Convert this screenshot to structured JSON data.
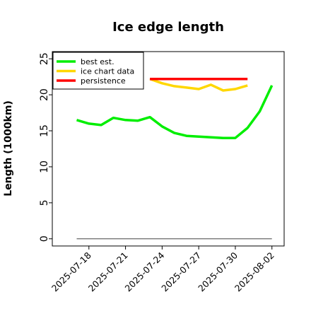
{
  "chart_data": {
    "type": "line",
    "title": "Ice edge length",
    "xlabel": "",
    "ylabel": "Length (1000km)",
    "ylim": [
      -1,
      26
    ],
    "xlim": [
      "2025-07-15",
      "2025-08-03"
    ],
    "yticks": [
      0,
      5,
      10,
      15,
      20,
      25
    ],
    "xticks": [
      "2025-07-18",
      "2025-07-21",
      "2025-07-24",
      "2025-07-27",
      "2025-07-30",
      "2025-08-02"
    ],
    "legend_position": "top-left",
    "series": [
      {
        "name": "best est.",
        "color": "#00ee00",
        "points": [
          [
            "2025-07-17",
            16.5
          ],
          [
            "2025-07-18",
            16.0
          ],
          [
            "2025-07-19",
            15.8
          ],
          [
            "2025-07-20",
            16.8
          ],
          [
            "2025-07-21",
            16.5
          ],
          [
            "2025-07-22",
            16.4
          ],
          [
            "2025-07-23",
            16.9
          ],
          [
            "2025-07-24",
            15.6
          ],
          [
            "2025-07-25",
            14.7
          ],
          [
            "2025-07-26",
            14.3
          ],
          [
            "2025-07-27",
            14.2
          ],
          [
            "2025-07-28",
            14.1
          ],
          [
            "2025-07-29",
            14.0
          ],
          [
            "2025-07-30",
            14.0
          ],
          [
            "2025-07-31",
            15.4
          ],
          [
            "2025-08-01",
            17.7
          ],
          [
            "2025-08-02",
            21.3
          ]
        ]
      },
      {
        "name": "ice chart data",
        "color": "#ffd700",
        "points": [
          [
            "2025-07-23",
            22.2
          ],
          [
            "2025-07-24",
            21.6
          ],
          [
            "2025-07-25",
            21.2
          ],
          [
            "2025-07-26",
            21.0
          ],
          [
            "2025-07-27",
            20.8
          ],
          [
            "2025-07-28",
            21.4
          ],
          [
            "2025-07-29",
            20.6
          ],
          [
            "2025-07-30",
            20.8
          ],
          [
            "2025-07-31",
            21.3
          ]
        ]
      },
      {
        "name": "persistence",
        "color": "#ff0000",
        "points": [
          [
            "2025-07-23",
            22.2
          ],
          [
            "2025-07-31",
            22.2
          ]
        ]
      },
      {
        "name": "",
        "color": "#808080",
        "points": [
          [
            "2025-07-17",
            0
          ],
          [
            "2025-08-02",
            0
          ]
        ]
      }
    ]
  }
}
